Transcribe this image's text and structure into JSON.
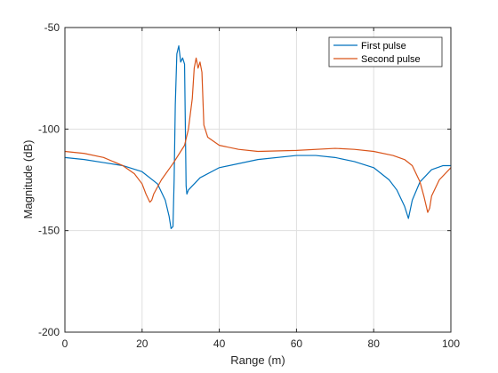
{
  "chart_data": {
    "type": "line",
    "title": "",
    "xlabel": "Range (m)",
    "ylabel": "Magnitude (dB)",
    "xlim": [
      0,
      100
    ],
    "ylim": [
      -200,
      -50
    ],
    "xticks": [
      0,
      20,
      40,
      60,
      80,
      100
    ],
    "yticks": [
      -200,
      -150,
      -100,
      -50
    ],
    "grid": true,
    "legend_position": "top-right",
    "series": [
      {
        "name": "First pulse",
        "color": "#0072BD",
        "x": [
          0,
          5,
          10,
          15,
          20,
          24,
          26,
          27,
          27.5,
          28,
          28.3,
          28.6,
          29,
          29.5,
          30,
          30.5,
          31,
          31.4,
          31.6,
          32,
          35,
          40,
          50,
          60,
          65,
          70,
          75,
          80,
          84,
          86,
          88,
          89,
          90,
          92,
          95,
          98,
          100
        ],
        "y": [
          -114,
          -115,
          -116.5,
          -118,
          -121,
          -127,
          -135,
          -143,
          -149,
          -148,
          -125,
          -88,
          -63,
          -59,
          -67,
          -65,
          -68,
          -128,
          -132,
          -130,
          -124,
          -119,
          -115,
          -113,
          -113,
          -114,
          -116,
          -119,
          -125,
          -130,
          -138,
          -144,
          -135,
          -126,
          -120,
          -118,
          -118
        ]
      },
      {
        "name": "Second pulse",
        "color": "#D95319",
        "x": [
          0,
          5,
          10,
          15,
          18,
          20,
          21,
          22,
          22.5,
          23,
          25,
          28,
          31,
          32,
          33,
          33.5,
          34,
          34.5,
          35,
          35.5,
          36,
          37,
          40,
          45,
          50,
          60,
          70,
          75,
          80,
          85,
          88,
          90,
          92,
          93,
          94,
          94.5,
          95,
          97,
          100
        ],
        "y": [
          -111,
          -112,
          -114,
          -118,
          -122,
          -127,
          -132,
          -136,
          -135,
          -132,
          -125,
          -117,
          -108,
          -100,
          -85,
          -70,
          -65,
          -70,
          -67,
          -72,
          -98,
          -104,
          -108,
          -110,
          -111,
          -110.5,
          -109.5,
          -110,
          -111,
          -113,
          -115,
          -118,
          -126,
          -133,
          -141,
          -139,
          -133,
          -125,
          -119
        ]
      }
    ]
  }
}
